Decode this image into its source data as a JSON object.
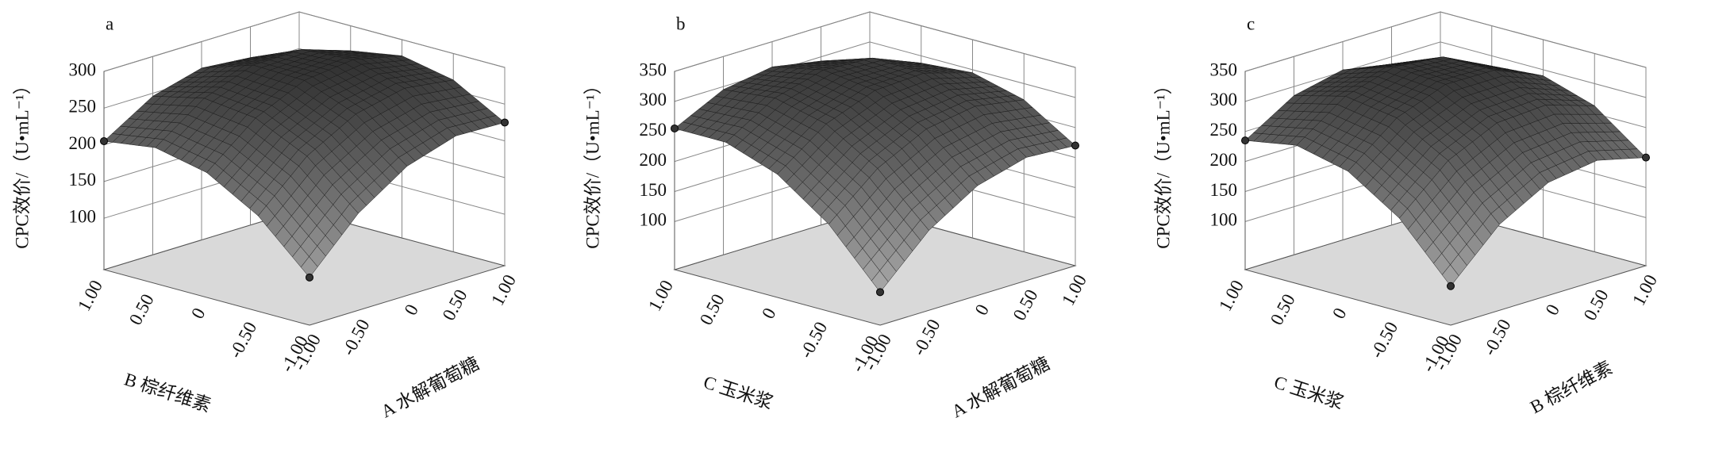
{
  "chart_data": [
    {
      "type": "surface",
      "label": "a",
      "zlabel": "CPC效价/（U•mL⁻¹）",
      "xlabel": "A 水解葡萄糖",
      "ylabel": "B 棕纤维素",
      "xlim": [
        -1,
        1
      ],
      "ylim": [
        -1,
        1
      ],
      "zlim": [
        30,
        300
      ],
      "xticks": [
        {
          "value": -1,
          "label": "-1.00"
        },
        {
          "value": -0.5,
          "label": "-0.50"
        },
        0,
        {
          "value": 0.5,
          "label": "0.50"
        },
        {
          "value": 1,
          "label": "1.00"
        }
      ],
      "yticks": [
        {
          "value": -1,
          "label": "-1.00"
        },
        {
          "value": -0.5,
          "label": "-0.50"
        },
        0,
        {
          "value": 0.5,
          "label": "0.50"
        },
        {
          "value": 1,
          "label": "1.00"
        }
      ],
      "zticks": [
        100,
        150,
        200,
        250,
        300
      ],
      "x": [
        -1,
        -0.5,
        0,
        0.5,
        1
      ],
      "y": [
        -1,
        -0.5,
        0,
        0.5,
        1
      ],
      "z": [
        [
          95,
          162,
          206,
          227,
          225
        ],
        [
          160,
          221,
          258,
          273,
          264
        ],
        [
          200,
          254,
          285,
          293,
          278
        ],
        [
          215,
          262,
          287,
          288,
          266
        ],
        [
          205,
          246,
          264,
          258,
          230
        ]
      ]
    },
    {
      "type": "surface",
      "label": "b",
      "zlabel": "CPC效价/（U•mL⁻¹）",
      "xlabel": "A 水解葡萄糖",
      "ylabel": "C 玉米浆",
      "xlim": [
        -1,
        1
      ],
      "ylim": [
        -1,
        1
      ],
      "zlim": [
        20,
        350
      ],
      "xticks": [
        {
          "value": -1,
          "label": "-1.00"
        },
        {
          "value": -0.5,
          "label": "-0.50"
        },
        0,
        {
          "value": 0.5,
          "label": "0.50"
        },
        {
          "value": 1,
          "label": "1.00"
        }
      ],
      "yticks": [
        {
          "value": -1,
          "label": "-1.00"
        },
        {
          "value": -0.5,
          "label": "-0.50"
        },
        0,
        {
          "value": 0.5,
          "label": "0.50"
        },
        {
          "value": 1,
          "label": "1.00"
        }
      ],
      "zticks": [
        100,
        150,
        200,
        250,
        300,
        350
      ],
      "x": [
        -1,
        -0.5,
        0,
        0.5,
        1
      ],
      "y": [
        -1,
        -0.5,
        0,
        0.5,
        1
      ],
      "z": [
        [
          75,
          153,
          203,
          225,
          220
        ],
        [
          165,
          233,
          274,
          287,
          273
        ],
        [
          225,
          284,
          315,
          319,
          295
        ],
        [
          255,
          304,
          326,
          321,
          288
        ],
        [
          255,
          295,
          308,
          293,
          250
        ]
      ]
    },
    {
      "type": "surface",
      "label": "c",
      "zlabel": "CPC效价/（U•mL⁻¹）",
      "xlabel": "B 棕纤维素",
      "ylabel": "C 玉米浆",
      "xlim": [
        -1,
        1
      ],
      "ylim": [
        -1,
        1
      ],
      "zlim": [
        20,
        350
      ],
      "xticks": [
        {
          "value": -1,
          "label": "-1.00"
        },
        {
          "value": -0.5,
          "label": "-0.50"
        },
        0,
        {
          "value": 0.5,
          "label": "0.50"
        },
        {
          "value": 1,
          "label": "1.00"
        }
      ],
      "yticks": [
        {
          "value": -1,
          "label": "-1.00"
        },
        {
          "value": -0.5,
          "label": "-0.50"
        },
        0,
        {
          "value": 0.5,
          "label": "0.50"
        },
        {
          "value": 1,
          "label": "1.00"
        }
      ],
      "zticks": [
        100,
        150,
        200,
        250,
        300,
        350
      ],
      "x": [
        -1,
        -0.5,
        0,
        0.5,
        1
      ],
      "y": [
        -1,
        -0.5,
        0,
        0.5,
        1
      ],
      "z": [
        [
          85,
          163,
          208,
          220,
          200
        ],
        [
          175,
          246,
          284,
          289,
          263
        ],
        [
          230,
          294,
          325,
          324,
          290
        ],
        [
          250,
          307,
          331,
          323,
          283
        ],
        [
          235,
          285,
          303,
          288,
          240
        ]
      ]
    }
  ]
}
